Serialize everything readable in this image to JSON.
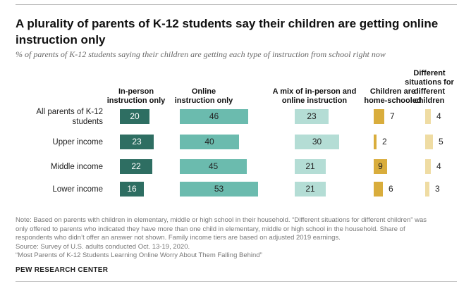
{
  "title": "A plurality of parents of K-12 students say their children are getting online instruction only",
  "subtitle": "% of parents of K-12 students saying their children are getting each type of instruction from school right now",
  "chart_data": {
    "type": "bar",
    "categories": [
      "All parents of K-12 students",
      "Upper income",
      "Middle income",
      "Lower income"
    ],
    "series": [
      {
        "name": "In-person instruction only",
        "values": [
          20,
          23,
          22,
          16
        ],
        "color": "#2e6e62",
        "label_color": "#ffffff"
      },
      {
        "name": "Online instruction only",
        "values": [
          46,
          40,
          45,
          53
        ],
        "color": "#6bbbae",
        "label_color": "#222222"
      },
      {
        "name": "A mix of in-person and online instruction",
        "values": [
          23,
          30,
          21,
          21
        ],
        "color": "#b4ddd5",
        "label_color": "#222222"
      },
      {
        "name": "Children are home-schooled",
        "values": [
          7,
          2,
          9,
          6
        ],
        "color": "#d9ad3c",
        "label_color": "#222222"
      },
      {
        "name": "Different situations for different children",
        "values": [
          4,
          5,
          4,
          3
        ],
        "color": "#efdca3",
        "label_color": "#222222"
      }
    ]
  },
  "footnotes": {
    "note_line1": "Note: Based on parents with children in elementary, middle or high school in their household. “Different situations for different children” was",
    "note_line2": "only offered to parents who indicated they have more than one child in elementary, middle or high school in the household. Share of",
    "note_line3": "respondents who didn’t offer an answer not shown. Family income tiers are based on adjusted 2019 earnings.",
    "source": "Source: Survey of U.S. adults conducted Oct. 13-19, 2020.",
    "report": "“Most Parents of K-12 Students Learning Online Worry About Them Falling Behind”"
  },
  "brand": "PEW RESEARCH CENTER"
}
